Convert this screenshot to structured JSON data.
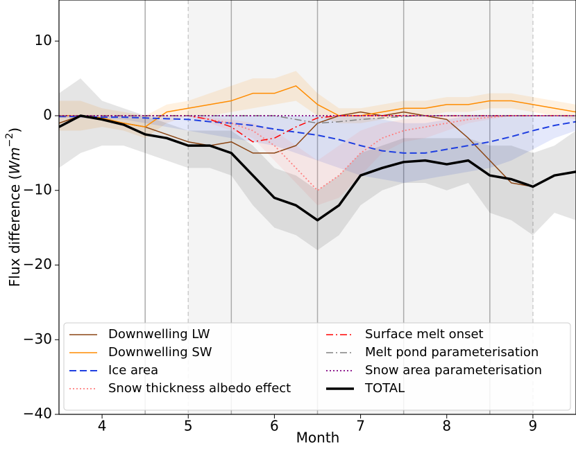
{
  "chart_data": {
    "type": "line",
    "xlabel": "Month",
    "ylabel": {
      "text": "Flux difference (",
      "unit": "Wm",
      "exp": "−2",
      "close": ")"
    },
    "xlim": [
      3.5,
      9.5
    ],
    "ylim": [
      -40,
      15.5
    ],
    "xticks": [
      4,
      5,
      6,
      7,
      8,
      9
    ],
    "yticks": [
      {
        "value": -40,
        "label": "−40"
      },
      {
        "value": -30,
        "label": "−30"
      },
      {
        "value": -20,
        "label": "−20"
      },
      {
        "value": -10,
        "label": "−10"
      },
      0,
      10
    ],
    "vlines_solid": [
      4.5,
      5.5,
      6.5,
      7.5,
      8.5
    ],
    "vlines_dashed": [
      5,
      9
    ],
    "shaded_span": [
      5,
      9
    ],
    "legend": "lower center",
    "x": [
      3.5,
      3.75,
      4,
      4.25,
      4.5,
      4.75,
      5,
      5.25,
      5.5,
      5.75,
      6,
      6.25,
      6.5,
      6.75,
      7,
      7.25,
      7.5,
      7.75,
      8,
      8.25,
      8.5,
      8.75,
      9,
      9.25,
      9.5
    ],
    "series": [
      {
        "name": "Downwelling LW",
        "color": "#8b4513",
        "dash": "solid",
        "width": 1.5,
        "values": [
          -1,
          0,
          -0.5,
          -1,
          -1.5,
          -2.5,
          -3.5,
          -4,
          -3.5,
          -5,
          -5,
          -4,
          -1,
          0,
          0.5,
          0,
          0.5,
          0,
          -0.5,
          -3,
          -6,
          -9,
          -9.5,
          -8,
          -7.5
        ]
      },
      {
        "name": "Downwelling SW",
        "color": "#ff8c00",
        "dash": "solid",
        "width": 1.5,
        "values": [
          0,
          0,
          -0.3,
          -1,
          -1.5,
          0.5,
          1,
          1.5,
          2,
          3,
          3,
          4,
          1.5,
          0,
          0,
          0.5,
          1,
          1,
          1.5,
          1.5,
          2,
          2,
          1.5,
          1,
          0.5
        ],
        "upper": [
          2,
          2,
          1,
          0.5,
          0,
          1.5,
          2,
          3,
          4,
          5,
          5,
          6,
          3,
          1,
          1,
          1.5,
          2,
          2,
          2.5,
          2.5,
          3,
          3,
          2.5,
          2,
          1.5
        ],
        "lower": [
          -2,
          -2,
          -1.5,
          -2,
          -3,
          -1,
          0,
          0,
          0.5,
          1,
          1.5,
          2,
          0,
          -1,
          -1,
          -0.5,
          0,
          0,
          0.5,
          0.5,
          1,
          1,
          0.5,
          0,
          -0.5
        ]
      },
      {
        "name": "Ice area",
        "color": "#1f3fe0",
        "dash": "dashed",
        "width": 2,
        "values": [
          -0.1,
          -0.1,
          -0.2,
          -0.2,
          -0.3,
          -0.4,
          -0.5,
          -0.8,
          -1,
          -1.3,
          -1.8,
          -2.2,
          -2.6,
          -3.2,
          -4,
          -4.7,
          -5,
          -5,
          -4.5,
          -4,
          -3.5,
          -2.8,
          -2,
          -1.3,
          -0.8
        ],
        "upper": [
          0,
          0,
          0,
          0,
          0,
          0,
          0,
          0,
          0,
          0,
          0,
          0,
          0,
          0,
          0,
          -0.5,
          -1,
          -1,
          -0.5,
          0,
          0,
          0,
          0,
          0,
          0
        ],
        "lower": [
          -0.3,
          -0.3,
          -0.5,
          -0.5,
          -1,
          -1.5,
          -2,
          -2.5,
          -3,
          -3.5,
          -4,
          -5,
          -6,
          -7,
          -8,
          -8.5,
          -9,
          -8.5,
          -8,
          -7.5,
          -7,
          -6,
          -4.5,
          -3,
          -2
        ]
      },
      {
        "name": "Snow thickness albedo effect",
        "color": "#ff7f7f",
        "dash": "dotted",
        "width": 1.8,
        "values": [
          0,
          0,
          0,
          0,
          0,
          0,
          0,
          -0.5,
          -1,
          -2,
          -4,
          -7,
          -10,
          -8,
          -5,
          -3,
          -2,
          -1.5,
          -1,
          -0.5,
          -0.2,
          0,
          0,
          0,
          0
        ],
        "upper": [
          0,
          0,
          0,
          0,
          0,
          0,
          0,
          -0.2,
          -0.5,
          -1,
          -2,
          -4,
          -6,
          -4,
          -2,
          -1,
          -0.5,
          0,
          0,
          0,
          0,
          0,
          0,
          0,
          0
        ],
        "lower": [
          0,
          0,
          0,
          0,
          0,
          0,
          0,
          -1,
          -2,
          -3,
          -6,
          -9,
          -12,
          -11,
          -8,
          -5,
          -3.5,
          -3,
          -2,
          -1,
          -0.5,
          0,
          0,
          0,
          0
        ]
      },
      {
        "name": "Surface melt onset",
        "color": "#ff0000",
        "dash": "dashdot",
        "width": 1.5,
        "values": [
          0,
          0,
          0,
          0,
          0,
          0,
          0,
          -0.5,
          -1.5,
          -3.5,
          -3,
          -1.5,
          -0.3,
          0,
          0,
          0,
          0,
          0,
          0,
          0,
          0,
          0,
          0,
          0,
          0
        ]
      },
      {
        "name": "Melt pond parameterisation",
        "color": "#808080",
        "dash": "dashdot",
        "width": 1.5,
        "values": [
          0,
          0,
          0,
          0,
          0,
          0,
          0,
          0,
          0,
          0,
          0,
          -0.5,
          -1,
          -0.8,
          -0.5,
          -0.3,
          -0.1,
          0,
          0,
          0,
          0,
          0,
          0,
          0,
          0
        ]
      },
      {
        "name": "Snow area parameterisation",
        "color": "#800080",
        "dash": "dotted",
        "width": 1.8,
        "values": [
          0,
          0,
          0,
          0,
          0,
          0,
          0,
          0,
          0,
          0,
          0,
          0,
          0,
          0,
          0,
          0,
          0,
          0,
          0,
          0,
          0,
          0,
          0,
          0,
          0
        ]
      },
      {
        "name": "TOTAL",
        "color": "#000000",
        "dash": "solid",
        "width": 3.5,
        "values": [
          -1.5,
          0,
          -0.5,
          -1.2,
          -2.5,
          -3,
          -4,
          -4,
          -5,
          -8,
          -11,
          -12,
          -14,
          -12,
          -8,
          -7,
          -6.2,
          -6,
          -6.5,
          -6,
          -8,
          -8.5,
          -9.5,
          -8,
          -7.5
        ],
        "upper": [
          3,
          5,
          2,
          1,
          0,
          -1,
          -2,
          -2,
          -2,
          -4,
          -7,
          -8,
          -10,
          -8,
          -5,
          -4,
          -3,
          -3,
          -3,
          -3,
          -4,
          -4,
          -5,
          -4,
          -2
        ],
        "lower": [
          -7,
          -5,
          -4,
          -4,
          -5,
          -6,
          -7,
          -7,
          -8,
          -12,
          -15,
          -16,
          -18,
          -16,
          -12,
          -10,
          -9,
          -9,
          -10,
          -9,
          -13,
          -14,
          -16,
          -13,
          -14
        ]
      }
    ]
  }
}
